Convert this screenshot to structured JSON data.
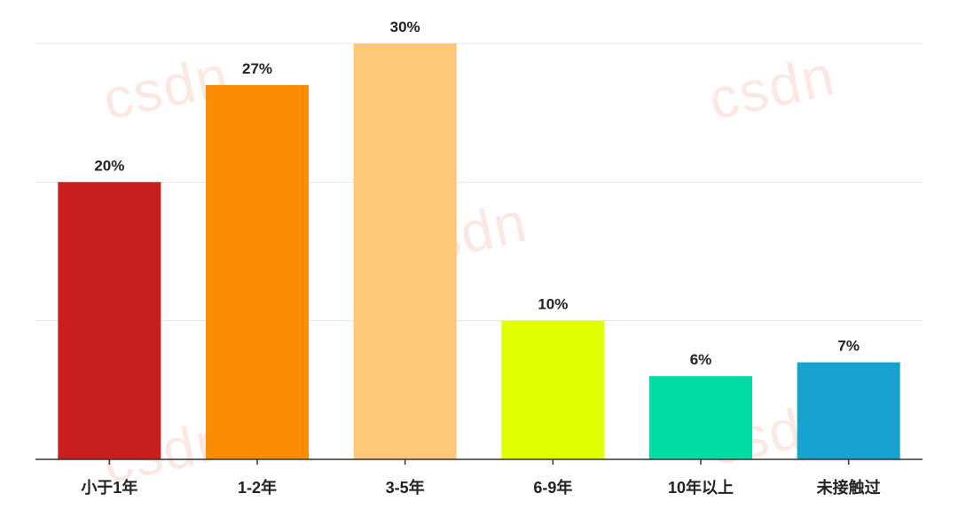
{
  "chart_data": {
    "type": "bar",
    "categories": [
      "小于1年",
      "1-2年",
      "3-5年",
      "6-9年",
      "10年以上",
      "未接触过"
    ],
    "values": [
      20,
      27,
      30,
      10,
      6,
      7
    ],
    "value_labels": [
      "20%",
      "27%",
      "30%",
      "10%",
      "6%",
      "7%"
    ],
    "colors": [
      "#c81e1e",
      "#f98c00",
      "#fdc777",
      "#e2ff00",
      "#00dba3",
      "#18a2cf"
    ],
    "ylim": [
      0,
      30
    ],
    "grid": true,
    "title": "",
    "xlabel": "",
    "ylabel": ""
  },
  "watermark": "csdn"
}
